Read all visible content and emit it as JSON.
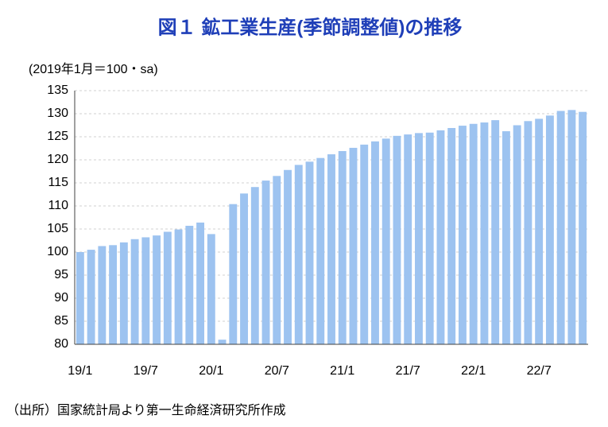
{
  "chart_data": {
    "type": "bar",
    "title": "図１ 鉱工業生産(季節調整値)の推移",
    "y_axis_label": "(2019年1月＝100・sa)",
    "source": "（出所）国家統計局より第一生命経済研究所作成",
    "categories": [
      "19/1",
      null,
      null,
      null,
      null,
      null,
      "19/7",
      null,
      null,
      null,
      null,
      null,
      "20/1",
      null,
      null,
      null,
      null,
      null,
      "20/7",
      null,
      null,
      null,
      null,
      null,
      "21/1",
      null,
      null,
      null,
      null,
      null,
      "21/7",
      null,
      null,
      null,
      null,
      null,
      "22/1",
      null,
      null,
      null,
      null,
      null,
      "22/7",
      null,
      null,
      null,
      null
    ],
    "values": [
      100.0,
      100.5,
      101.3,
      101.5,
      102.1,
      102.8,
      103.2,
      103.6,
      104.4,
      104.9,
      105.7,
      106.4,
      103.9,
      81.0,
      110.4,
      112.7,
      114.1,
      115.5,
      116.5,
      117.8,
      118.9,
      119.6,
      120.4,
      121.2,
      121.9,
      122.6,
      123.3,
      124.0,
      124.6,
      125.2,
      125.5,
      125.8,
      125.9,
      126.4,
      126.9,
      127.4,
      127.8,
      128.1,
      128.6,
      126.2,
      127.5,
      128.4,
      128.9,
      129.6,
      130.6,
      130.8,
      130.4
    ],
    "color": "#9dc3f0",
    "ylim": [
      80,
      135
    ],
    "yticks": [
      80,
      85,
      90,
      95,
      100,
      105,
      110,
      115,
      120,
      125,
      130,
      135
    ],
    "grid": true
  }
}
